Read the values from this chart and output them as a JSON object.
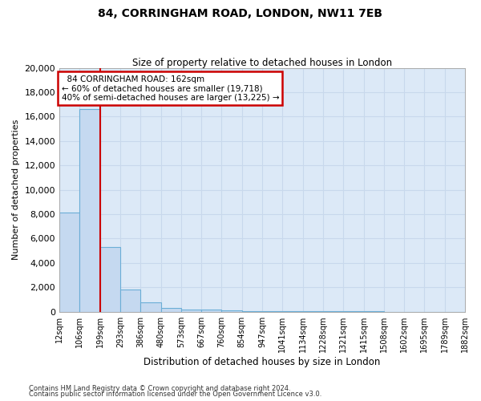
{
  "title": "84, CORRINGHAM ROAD, LONDON, NW11 7EB",
  "subtitle": "Size of property relative to detached houses in London",
  "xlabel": "Distribution of detached houses by size in London",
  "ylabel": "Number of detached properties",
  "bar_values": [
    8150,
    16600,
    5300,
    1800,
    750,
    300,
    200,
    200,
    100,
    50,
    30,
    20,
    15,
    10,
    8,
    6,
    5,
    4,
    3,
    2
  ],
  "bar_labels": [
    "12sqm",
    "106sqm",
    "199sqm",
    "293sqm",
    "386sqm",
    "480sqm",
    "573sqm",
    "667sqm",
    "760sqm",
    "854sqm",
    "947sqm",
    "1041sqm",
    "1134sqm",
    "1228sqm",
    "1321sqm",
    "1415sqm",
    "1508sqm",
    "1602sqm",
    "1695sqm",
    "1789sqm",
    "1882sqm"
  ],
  "bar_color": "#c5d9f0",
  "bar_edge_color": "#6baed6",
  "red_line_x": 2,
  "annotation_title": "84 CORRINGHAM ROAD: 162sqm",
  "annotation_line1": "← 60% of detached houses are smaller (19,718)",
  "annotation_line2": "40% of semi-detached houses are larger (13,225) →",
  "annotation_box_color": "#ffffff",
  "annotation_border_color": "#cc0000",
  "red_line_color": "#cc0000",
  "grid_color": "#c8d8ec",
  "bg_color": "#dce9f7",
  "footer_line1": "Contains HM Land Registry data © Crown copyright and database right 2024.",
  "footer_line2": "Contains public sector information licensed under the Open Government Licence v3.0.",
  "ylim": [
    0,
    20000
  ],
  "yticks": [
    0,
    2000,
    4000,
    6000,
    8000,
    10000,
    12000,
    14000,
    16000,
    18000,
    20000
  ]
}
